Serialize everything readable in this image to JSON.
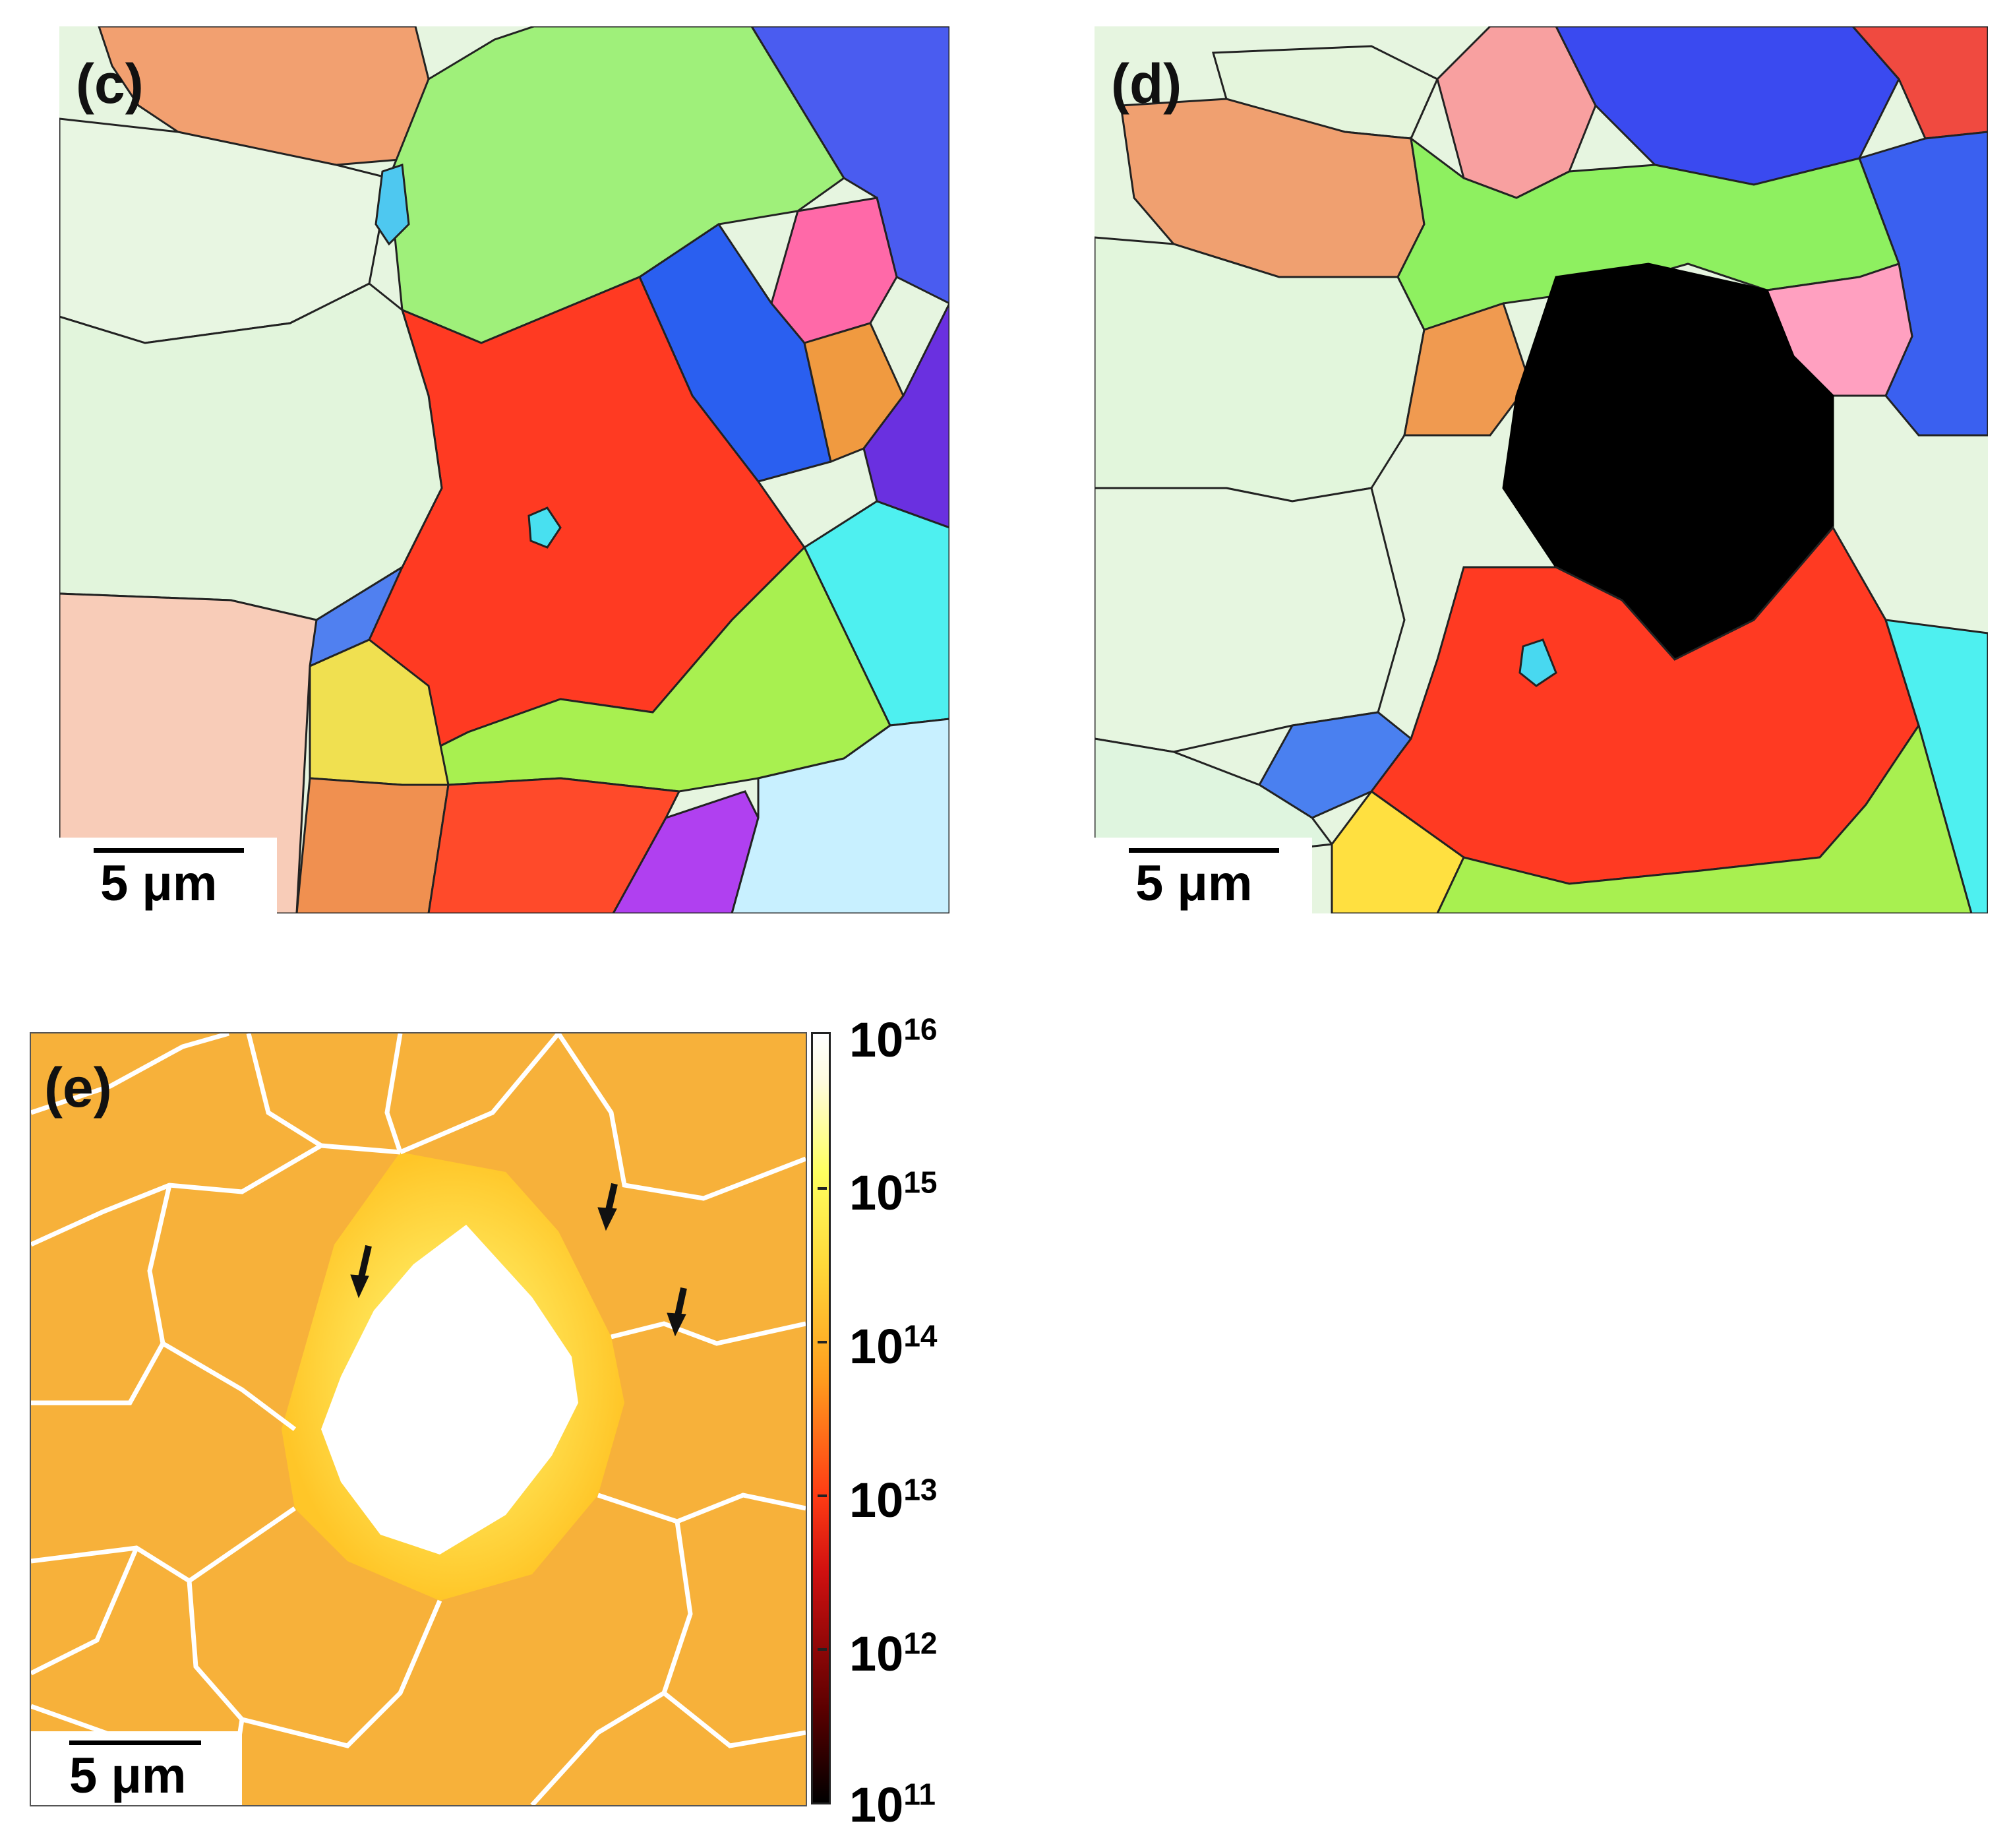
{
  "panels": {
    "c": {
      "label": "(c)",
      "scale_bar": "5 μm",
      "grains": [
        {
          "color": "#f2a070",
          "name": "grain-orange-top-left"
        },
        {
          "color": "#9ff07a",
          "name": "grain-green-top"
        },
        {
          "color": "#4a5cf0",
          "name": "grain-blue-top-right"
        },
        {
          "color": "#e8f6e2",
          "name": "grain-pale-green-left"
        },
        {
          "color": "#ff69a8",
          "name": "grain-pink-right"
        },
        {
          "color": "#ff3a22",
          "name": "grain-red-center"
        },
        {
          "color": "#2a5ff0",
          "name": "grain-blue-center-right"
        },
        {
          "color": "#a8f050",
          "name": "grain-yellow-green-lower"
        },
        {
          "color": "#f8ccb8",
          "name": "grain-peach-bottom-left"
        },
        {
          "color": "#f09050",
          "name": "grain-orange-bottom"
        },
        {
          "color": "#b040f0",
          "name": "grain-purple-bottom"
        },
        {
          "color": "#4ef0f0",
          "name": "grain-cyan-right"
        },
        {
          "color": "#5080f0",
          "name": "grain-blue-left"
        },
        {
          "color": "#c8f0ff",
          "name": "grain-light-cyan-bottom-right"
        }
      ]
    },
    "d": {
      "label": "(d)",
      "scale_bar": "5 μm",
      "grains": [
        {
          "color": "#f0a070",
          "name": "grain-orange-top-left"
        },
        {
          "color": "#3a4af0",
          "name": "grain-blue-top-right"
        },
        {
          "color": "#8ef060",
          "name": "grain-green-center"
        },
        {
          "color": "#e2f6dc",
          "name": "grain-pale-green-left"
        },
        {
          "color": "#ff3a22",
          "name": "grain-red-bottom"
        },
        {
          "color": "#ffa0c0",
          "name": "grain-pink-right"
        },
        {
          "color": "#3a60f0",
          "name": "grain-blue-right"
        },
        {
          "color": "#4ef0f0",
          "name": "grain-cyan-bottom-right"
        },
        {
          "color": "#a8f050",
          "name": "grain-yellow-green-bottom"
        },
        {
          "color": "#ffe040",
          "name": "grain-yellow-bottom-left"
        },
        {
          "color": "#000000",
          "name": "indent-unindexed-region"
        }
      ]
    },
    "e": {
      "label": "(e)",
      "scale_bar": "5 μm",
      "colorbar": {
        "scale": "log",
        "range": [
          11,
          16
        ],
        "ticks": [
          {
            "base": "10",
            "exp": "16"
          },
          {
            "base": "10",
            "exp": "15"
          },
          {
            "base": "10",
            "exp": "14"
          },
          {
            "base": "10",
            "exp": "13"
          },
          {
            "base": "10",
            "exp": "12"
          },
          {
            "base": "10",
            "exp": "11"
          }
        ],
        "colors": [
          "#000000",
          "#5a0000",
          "#d01010",
          "#ff3c14",
          "#ff9c1e",
          "#ffd93a",
          "#ffff60",
          "#ffffff"
        ]
      },
      "arrows": [
        {
          "name": "arrow-left",
          "direction": "down"
        },
        {
          "name": "arrow-top",
          "direction": "down"
        },
        {
          "name": "arrow-right",
          "direction": "down"
        }
      ]
    }
  }
}
